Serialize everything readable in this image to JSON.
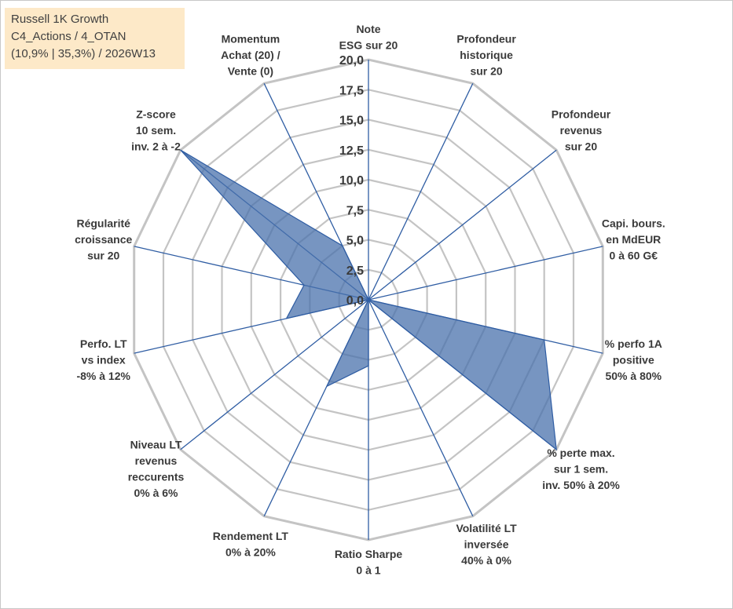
{
  "info_box": {
    "line1": "Russell 1K Growth",
    "line2": "C4_Actions / 4_OTAN",
    "line3": "(10,9% | 35,3%) / 2026W13"
  },
  "colors": {
    "grid": "#c4c4c4",
    "spoke": "#2f5da3",
    "fill": "#4a72ac",
    "fill_opacity": 0.75,
    "label": "#3a3a3a",
    "info_bg": "#fde9c8"
  },
  "chart_data": {
    "type": "radar",
    "title": "Russell 1K Growth",
    "rlim": [
      0,
      20
    ],
    "grid_step": 2.5,
    "tick_labels": [
      "0,0",
      "2,5",
      "5,0",
      "7,5",
      "10,0",
      "12,5",
      "15,0",
      "17,5",
      "20,0"
    ],
    "axes": [
      [
        "Note",
        "ESG sur 20"
      ],
      [
        "Profondeur",
        "historique",
        "sur 20"
      ],
      [
        "Profondeur",
        "revenus",
        "sur 20"
      ],
      [
        "Capi. bours.",
        "en MdEUR",
        "0 à 60 G€"
      ],
      [
        "% perfo 1A",
        "positive",
        "50% à 80%"
      ],
      [
        "% perte max.",
        "sur 1 sem.",
        "inv. 50% à 20%"
      ],
      [
        "Volatilité LT",
        "inversée",
        "40% à 0%"
      ],
      [
        "Ratio Sharpe",
        "0 à 1"
      ],
      [
        "Rendement LT",
        "0% à 20%"
      ],
      [
        "Niveau LT",
        "revenus",
        "reccurents",
        "0% à 6%"
      ],
      [
        "Perfo. LT",
        "vs index",
        "-8% à 12%"
      ],
      [
        "Régularité",
        "croissance",
        "sur 20"
      ],
      [
        "Z-score",
        "10 sem.",
        "inv. 2 à -2"
      ],
      [
        "Momentum",
        "Achat (20) /",
        "Vente (0)"
      ]
    ],
    "series": [
      {
        "name": "Russell 1K Growth",
        "values": [
          0,
          0,
          0,
          0,
          15,
          20,
          0,
          5.5,
          8,
          0,
          7,
          5.5,
          20,
          5
        ]
      }
    ]
  }
}
